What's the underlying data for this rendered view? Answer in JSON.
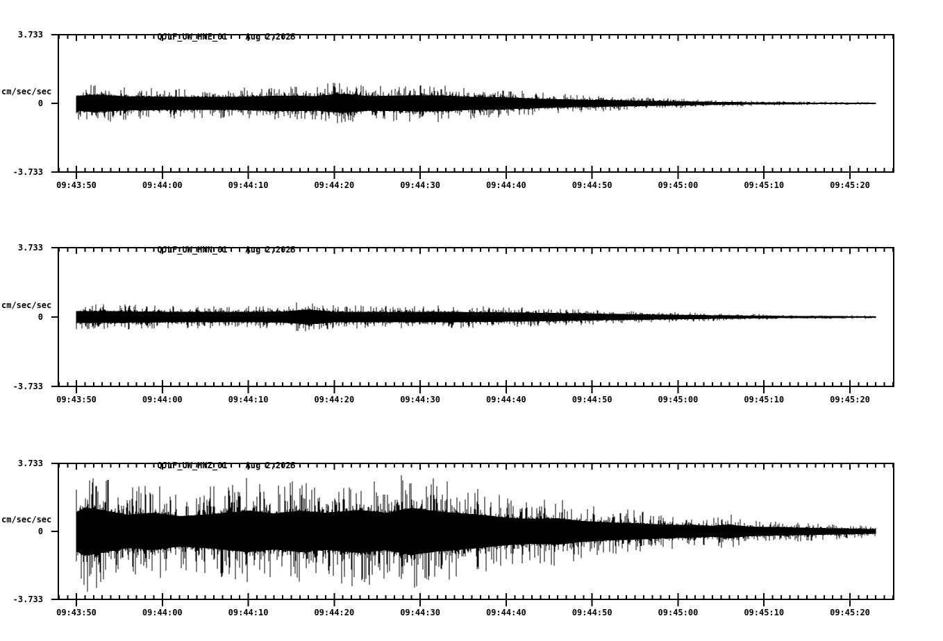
{
  "chart_data": {
    "type": "line",
    "subtype": "seismogram-3-component",
    "date": "Aug 2,2025",
    "y_max_label": "3.733",
    "y_zero_label": "0",
    "y_min_label": "-3.733",
    "y_unit": "cm/sec/sec",
    "ylim": [
      -3.733,
      3.733
    ],
    "x_tick_labels": [
      "09:43:50",
      "09:44:00",
      "09:44:10",
      "09:44:20",
      "09:44:30",
      "09:44:40",
      "09:44:50",
      "09:45:00",
      "09:45:10",
      "09:45:20"
    ],
    "x_major_tick_interval_sec": 10,
    "x_minor_tick_interval_sec": 1,
    "x_axis_span": "approx 09:43:48 to 09:45:25",
    "trace_color": "#000000",
    "background_color": "#ffffff",
    "grid": "off",
    "legend": "none",
    "envelope_note": "peak_amp_envelope = [seconds after 09:43:48 (left axis edge), approx peak amplitude in cm/sec/sec]; traces are zero-mean broadband noise bounded by this envelope",
    "series": [
      {
        "name": "QJLF_UW_HNE_01",
        "date": "Aug 2,2025",
        "peak_amp_envelope": [
          [
            2,
            0.95
          ],
          [
            4,
            1.15
          ],
          [
            8,
            0.9
          ],
          [
            14,
            0.85
          ],
          [
            20,
            0.85
          ],
          [
            26,
            1.0
          ],
          [
            30,
            0.95
          ],
          [
            33,
            1.25
          ],
          [
            36,
            0.95
          ],
          [
            40,
            1.0
          ],
          [
            44,
            1.05
          ],
          [
            48,
            0.85
          ],
          [
            52,
            0.78
          ],
          [
            56,
            0.6
          ],
          [
            60,
            0.5
          ],
          [
            64,
            0.42
          ],
          [
            68,
            0.34
          ],
          [
            72,
            0.27
          ],
          [
            76,
            0.2
          ],
          [
            80,
            0.15
          ],
          [
            84,
            0.12
          ],
          [
            88,
            0.1
          ],
          [
            92,
            0.08
          ],
          [
            95,
            0.07
          ]
        ]
      },
      {
        "name": "QJLF_UW_HNN_01",
        "date": "Aug 2,2025",
        "peak_amp_envelope": [
          [
            2,
            0.72
          ],
          [
            8,
            0.68
          ],
          [
            14,
            0.62
          ],
          [
            20,
            0.6
          ],
          [
            26,
            0.66
          ],
          [
            29,
            0.9
          ],
          [
            32,
            0.64
          ],
          [
            38,
            0.6
          ],
          [
            44,
            0.62
          ],
          [
            50,
            0.58
          ],
          [
            55,
            0.52
          ],
          [
            60,
            0.45
          ],
          [
            64,
            0.38
          ],
          [
            68,
            0.32
          ],
          [
            72,
            0.27
          ],
          [
            76,
            0.22
          ],
          [
            80,
            0.18
          ],
          [
            84,
            0.14
          ],
          [
            88,
            0.12
          ],
          [
            92,
            0.1
          ],
          [
            95,
            0.09
          ]
        ]
      },
      {
        "name": "QJLF_UW_HNZ_01",
        "date": "Aug 2,2025",
        "peak_amp_envelope": [
          [
            2,
            2.8
          ],
          [
            3,
            3.45
          ],
          [
            5,
            3.1
          ],
          [
            8,
            2.4
          ],
          [
            11,
            2.7
          ],
          [
            14,
            2.2
          ],
          [
            18,
            2.5
          ],
          [
            22,
            3.0
          ],
          [
            25,
            2.6
          ],
          [
            28,
            3.0
          ],
          [
            31,
            2.7
          ],
          [
            35,
            3.1
          ],
          [
            38,
            2.7
          ],
          [
            41,
            3.4
          ],
          [
            44,
            2.9
          ],
          [
            46,
            2.7
          ],
          [
            49,
            2.4
          ],
          [
            52,
            2.0
          ],
          [
            55,
            1.8
          ],
          [
            58,
            1.9
          ],
          [
            61,
            1.5
          ],
          [
            64,
            1.3
          ],
          [
            67,
            1.2
          ],
          [
            70,
            1.0
          ],
          [
            73,
            0.95
          ],
          [
            76,
            0.8
          ],
          [
            78,
            1.0
          ],
          [
            80,
            0.7
          ],
          [
            84,
            0.6
          ],
          [
            88,
            0.5
          ],
          [
            92,
            0.42
          ],
          [
            95,
            0.33
          ]
        ]
      }
    ]
  }
}
